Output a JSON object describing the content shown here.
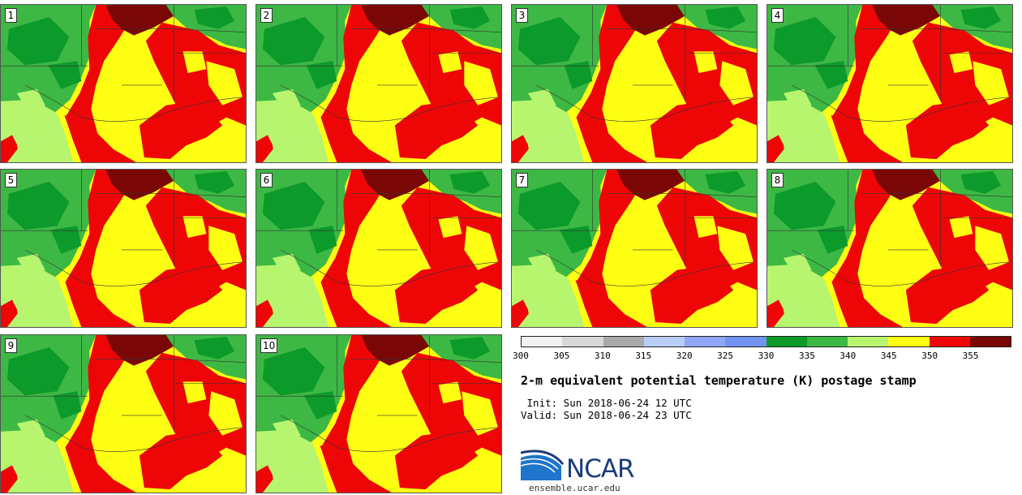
{
  "panels": [
    {
      "label": "1"
    },
    {
      "label": "2"
    },
    {
      "label": "3"
    },
    {
      "label": "4"
    },
    {
      "label": "5"
    },
    {
      "label": "6"
    },
    {
      "label": "7"
    },
    {
      "label": "8"
    },
    {
      "label": "9"
    },
    {
      "label": "10"
    }
  ],
  "colorbar": {
    "colors": [
      "#f2f2f2",
      "#d8d8d8",
      "#a9a9a9",
      "#b8cdf7",
      "#8ea6f4",
      "#7294f0",
      "#0c9a2a",
      "#3db844",
      "#b7f56f",
      "#ffff13",
      "#ee0606",
      "#7a0606"
    ],
    "ticks": [
      "300",
      "305",
      "310",
      "315",
      "320",
      "325",
      "330",
      "335",
      "340",
      "345",
      "350",
      "355"
    ]
  },
  "title": "2-m equivalent potential temperature (K) postage stamp",
  "init_line": " Init: Sun 2018-06-24 12 UTC",
  "valid_line": "Valid: Sun 2018-06-24 23 UTC",
  "logo": {
    "name": "NCAR",
    "url": "ensemble.ucar.edu"
  }
}
